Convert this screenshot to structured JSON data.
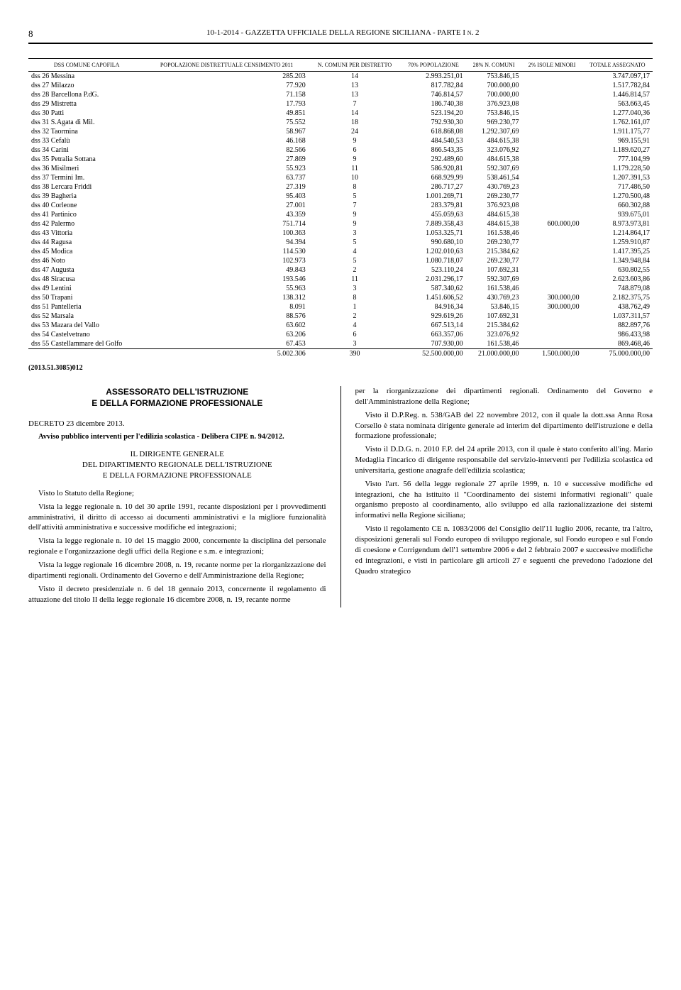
{
  "header": {
    "page": "8",
    "title": "10-1-2014 - GAZZETTA UFFICIALE DELLA REGIONE SICILIANA - PARTE I n. 2"
  },
  "table": {
    "columns": [
      "DSS COMUNE CAPOFILA",
      "POPOLAZIONE DISTRETTUALE CENSIMENTO 2011",
      "N. COMUNI PER DISTRETTO",
      "70% POPOLAZIONE",
      "28% N. COMUNI",
      "2% ISOLE MINORI",
      "TOTALE ASSEGNATO"
    ],
    "rows": [
      [
        "dss 26 Messina",
        "285.203",
        "14",
        "2.993.251,01",
        "753.846,15",
        "",
        "3.747.097,17"
      ],
      [
        "dss 27 Milazzo",
        "77.920",
        "13",
        "817.782,84",
        "700.000,00",
        "",
        "1.517.782,84"
      ],
      [
        "dss 28 Barcellona P.dG.",
        "71.158",
        "13",
        "746.814,57",
        "700.000,00",
        "",
        "1.446.814,57"
      ],
      [
        "dss 29 Mistretta",
        "17.793",
        "7",
        "186.740,38",
        "376.923,08",
        "",
        "563.663,45"
      ],
      [
        "dss 30 Patti",
        "49.851",
        "14",
        "523.194,20",
        "753.846,15",
        "",
        "1.277.040,36"
      ],
      [
        "dss 31 S.Agata di Mil.",
        "75.552",
        "18",
        "792.930,30",
        "969.230,77",
        "",
        "1.762.161,07"
      ],
      [
        "dss 32 Taormina",
        "58.967",
        "24",
        "618.868,08",
        "1.292.307,69",
        "",
        "1.911.175,77"
      ],
      [
        "dss 33 Cefalù",
        "46.168",
        "9",
        "484.540,53",
        "484.615,38",
        "",
        "969.155,91"
      ],
      [
        "dss 34 Carini",
        "82.566",
        "6",
        "866.543,35",
        "323.076,92",
        "",
        "1.189.620,27"
      ],
      [
        "dss 35 Petralia Sottana",
        "27.869",
        "9",
        "292.489,60",
        "484.615,38",
        "",
        "777.104,99"
      ],
      [
        "dss 36 Misilmeri",
        "55.923",
        "11",
        "586.920,81",
        "592.307,69",
        "",
        "1.179.228,50"
      ],
      [
        "dss 37 Termini Im.",
        "63.737",
        "10",
        "668.929,99",
        "538.461,54",
        "",
        "1.207.391,53"
      ],
      [
        "dss 38 Lercara Friddi",
        "27.319",
        "8",
        "286.717,27",
        "430.769,23",
        "",
        "717.486,50"
      ],
      [
        "dss 39 Bagheria",
        "95.403",
        "5",
        "1.001.269,71",
        "269.230,77",
        "",
        "1.270.500,48"
      ],
      [
        "dss 40 Corleone",
        "27.001",
        "7",
        "283.379,81",
        "376.923,08",
        "",
        "660.302,88"
      ],
      [
        "dss 41 Partinico",
        "43.359",
        "9",
        "455.059,63",
        "484.615,38",
        "",
        "939.675,01"
      ],
      [
        "dss 42 Palermo",
        "751.714",
        "9",
        "7.889.358,43",
        "484.615,38",
        "600.000,00",
        "8.973.973,81"
      ],
      [
        "dss 43 Vittoria",
        "100.363",
        "3",
        "1.053.325,71",
        "161.538,46",
        "",
        "1.214.864,17"
      ],
      [
        "dss 44 Ragusa",
        "94.394",
        "5",
        "990.680,10",
        "269.230,77",
        "",
        "1.259.910,87"
      ],
      [
        "dss 45 Modica",
        "114.530",
        "4",
        "1.202.010,63",
        "215.384,62",
        "",
        "1.417.395,25"
      ],
      [
        "dss 46 Noto",
        "102.973",
        "5",
        "1.080.718,07",
        "269.230,77",
        "",
        "1.349.948,84"
      ],
      [
        "dss 47 Augusta",
        "49.843",
        "2",
        "523.110,24",
        "107.692,31",
        "",
        "630.802,55"
      ],
      [
        "dss 48 Siracusa",
        "193.546",
        "11",
        "2.031.296,17",
        "592.307,69",
        "",
        "2.623.603,86"
      ],
      [
        "dss 49 Lentini",
        "55.963",
        "3",
        "587.340,62",
        "161.538,46",
        "",
        "748.879,08"
      ],
      [
        "dss 50 Trapani",
        "138.312",
        "8",
        "1.451.606,52",
        "430.769,23",
        "300.000,00",
        "2.182.375,75"
      ],
      [
        "dss 51 Pantelleria",
        "8.091",
        "1",
        "84.916,34",
        "53.846,15",
        "300.000,00",
        "438.762,49"
      ],
      [
        "dss 52 Marsala",
        "88.576",
        "2",
        "929.619,26",
        "107.692,31",
        "",
        "1.037.311,57"
      ],
      [
        "dss 53 Mazara del Vallo",
        "63.602",
        "4",
        "667.513,14",
        "215.384,62",
        "",
        "882.897,76"
      ],
      [
        "dss 54 Castelvetrano",
        "63.206",
        "6",
        "663.357,06",
        "323.076,92",
        "",
        "986.433,98"
      ],
      [
        "dss 55 Castellammare del Golfo",
        "67.453",
        "3",
        "707.930,00",
        "161.538,46",
        "",
        "869.468,46"
      ],
      [
        "",
        "5.002.306",
        "390",
        "52.500.000,00",
        "21.000.000,00",
        "1.500.000,00",
        "75.000.000,00"
      ]
    ]
  },
  "codice": "(2013.51.3085)012",
  "left": {
    "title1": "ASSESSORATO DELL'ISTRUZIONE",
    "title2": "E DELLA FORMAZIONE PROFESSIONALE",
    "decreto": "DECRETO 23 dicembre 2013.",
    "sub": "Avviso pubblico interventi per l'edilizia scolastica - Delibera CIPE n. 94/2012.",
    "dir1": "IL DIRIGENTE GENERALE",
    "dir2": "DEL DIPARTIMENTO REGIONALE DELL'ISTRUZIONE",
    "dir3": "E DELLA FORMAZIONE PROFESSIONALE",
    "p1": "Visto lo Statuto della Regione;",
    "p2": "Vista la legge regionale n. 10 del 30 aprile 1991, recante disposizioni per i provvedimenti amministrativi, il diritto di accesso ai documenti amministrativi e la migliore funzionalità dell'attività amministrativa e successive modifiche ed integrazioni;",
    "p3": "Vista la legge regionale n. 10 del 15 maggio 2000, concernente la disciplina del personale regionale e l'organizzazione degli uffici della Regione e s.m. e integrazioni;",
    "p4": "Vista la legge regionale 16 dicembre 2008, n. 19, recante norme per la riorganizzazione dei dipartimenti regionali. Ordinamento del Governo e dell'Amministrazione della Regione;",
    "p5": "Visto il decreto presidenziale n. 6 del 18 gennaio 2013, concernente il regolamento di attuazione del titolo II della legge regionale 16 dicembre 2008, n. 19, recante norme"
  },
  "right": {
    "p1": "per la riorganizzazione dei dipartimenti regionali. Ordinamento del Governo e dell'Amministrazione della Regione;",
    "p2": "Visto il D.P.Reg. n. 538/GAB del 22 novembre 2012, con il quale la dott.ssa Anna Rosa Corsello è stata nominata dirigente generale ad interim del dipartimento dell'istruzione e della formazione professionale;",
    "p3": "Visto il D.D.G. n. 2010 F.P. del 24 aprile 2013, con il quale è stato conferito all'ing. Mario Medaglia l'incarico di dirigente responsabile del servizio-interventi per l'edilizia scolastica ed universitaria, gestione anagrafe dell'edilizia scolastica;",
    "p4": "Visto l'art. 56 della legge regionale 27 aprile 1999, n. 10 e successive modifiche ed integrazioni, che ha istituito il \"Coordinamento dei sistemi informativi regionali\" quale organismo preposto al coordinamento, allo sviluppo ed alla razionalizzazione dei sistemi informativi nella Regione siciliana;",
    "p5": "Visto il regolamento CE n. 1083/2006 del Consiglio dell'11 luglio 2006, recante, tra l'altro, disposizioni generali sul Fondo europeo di sviluppo regionale, sul Fondo europeo e sul Fondo di coesione e Corrigendum dell'1 settembre 2006 e del 2 febbraio 2007 e successive modifiche ed integrazioni, e visti in particolare gli articoli 27 e seguenti che prevedono l'adozione del Quadro strategico"
  }
}
